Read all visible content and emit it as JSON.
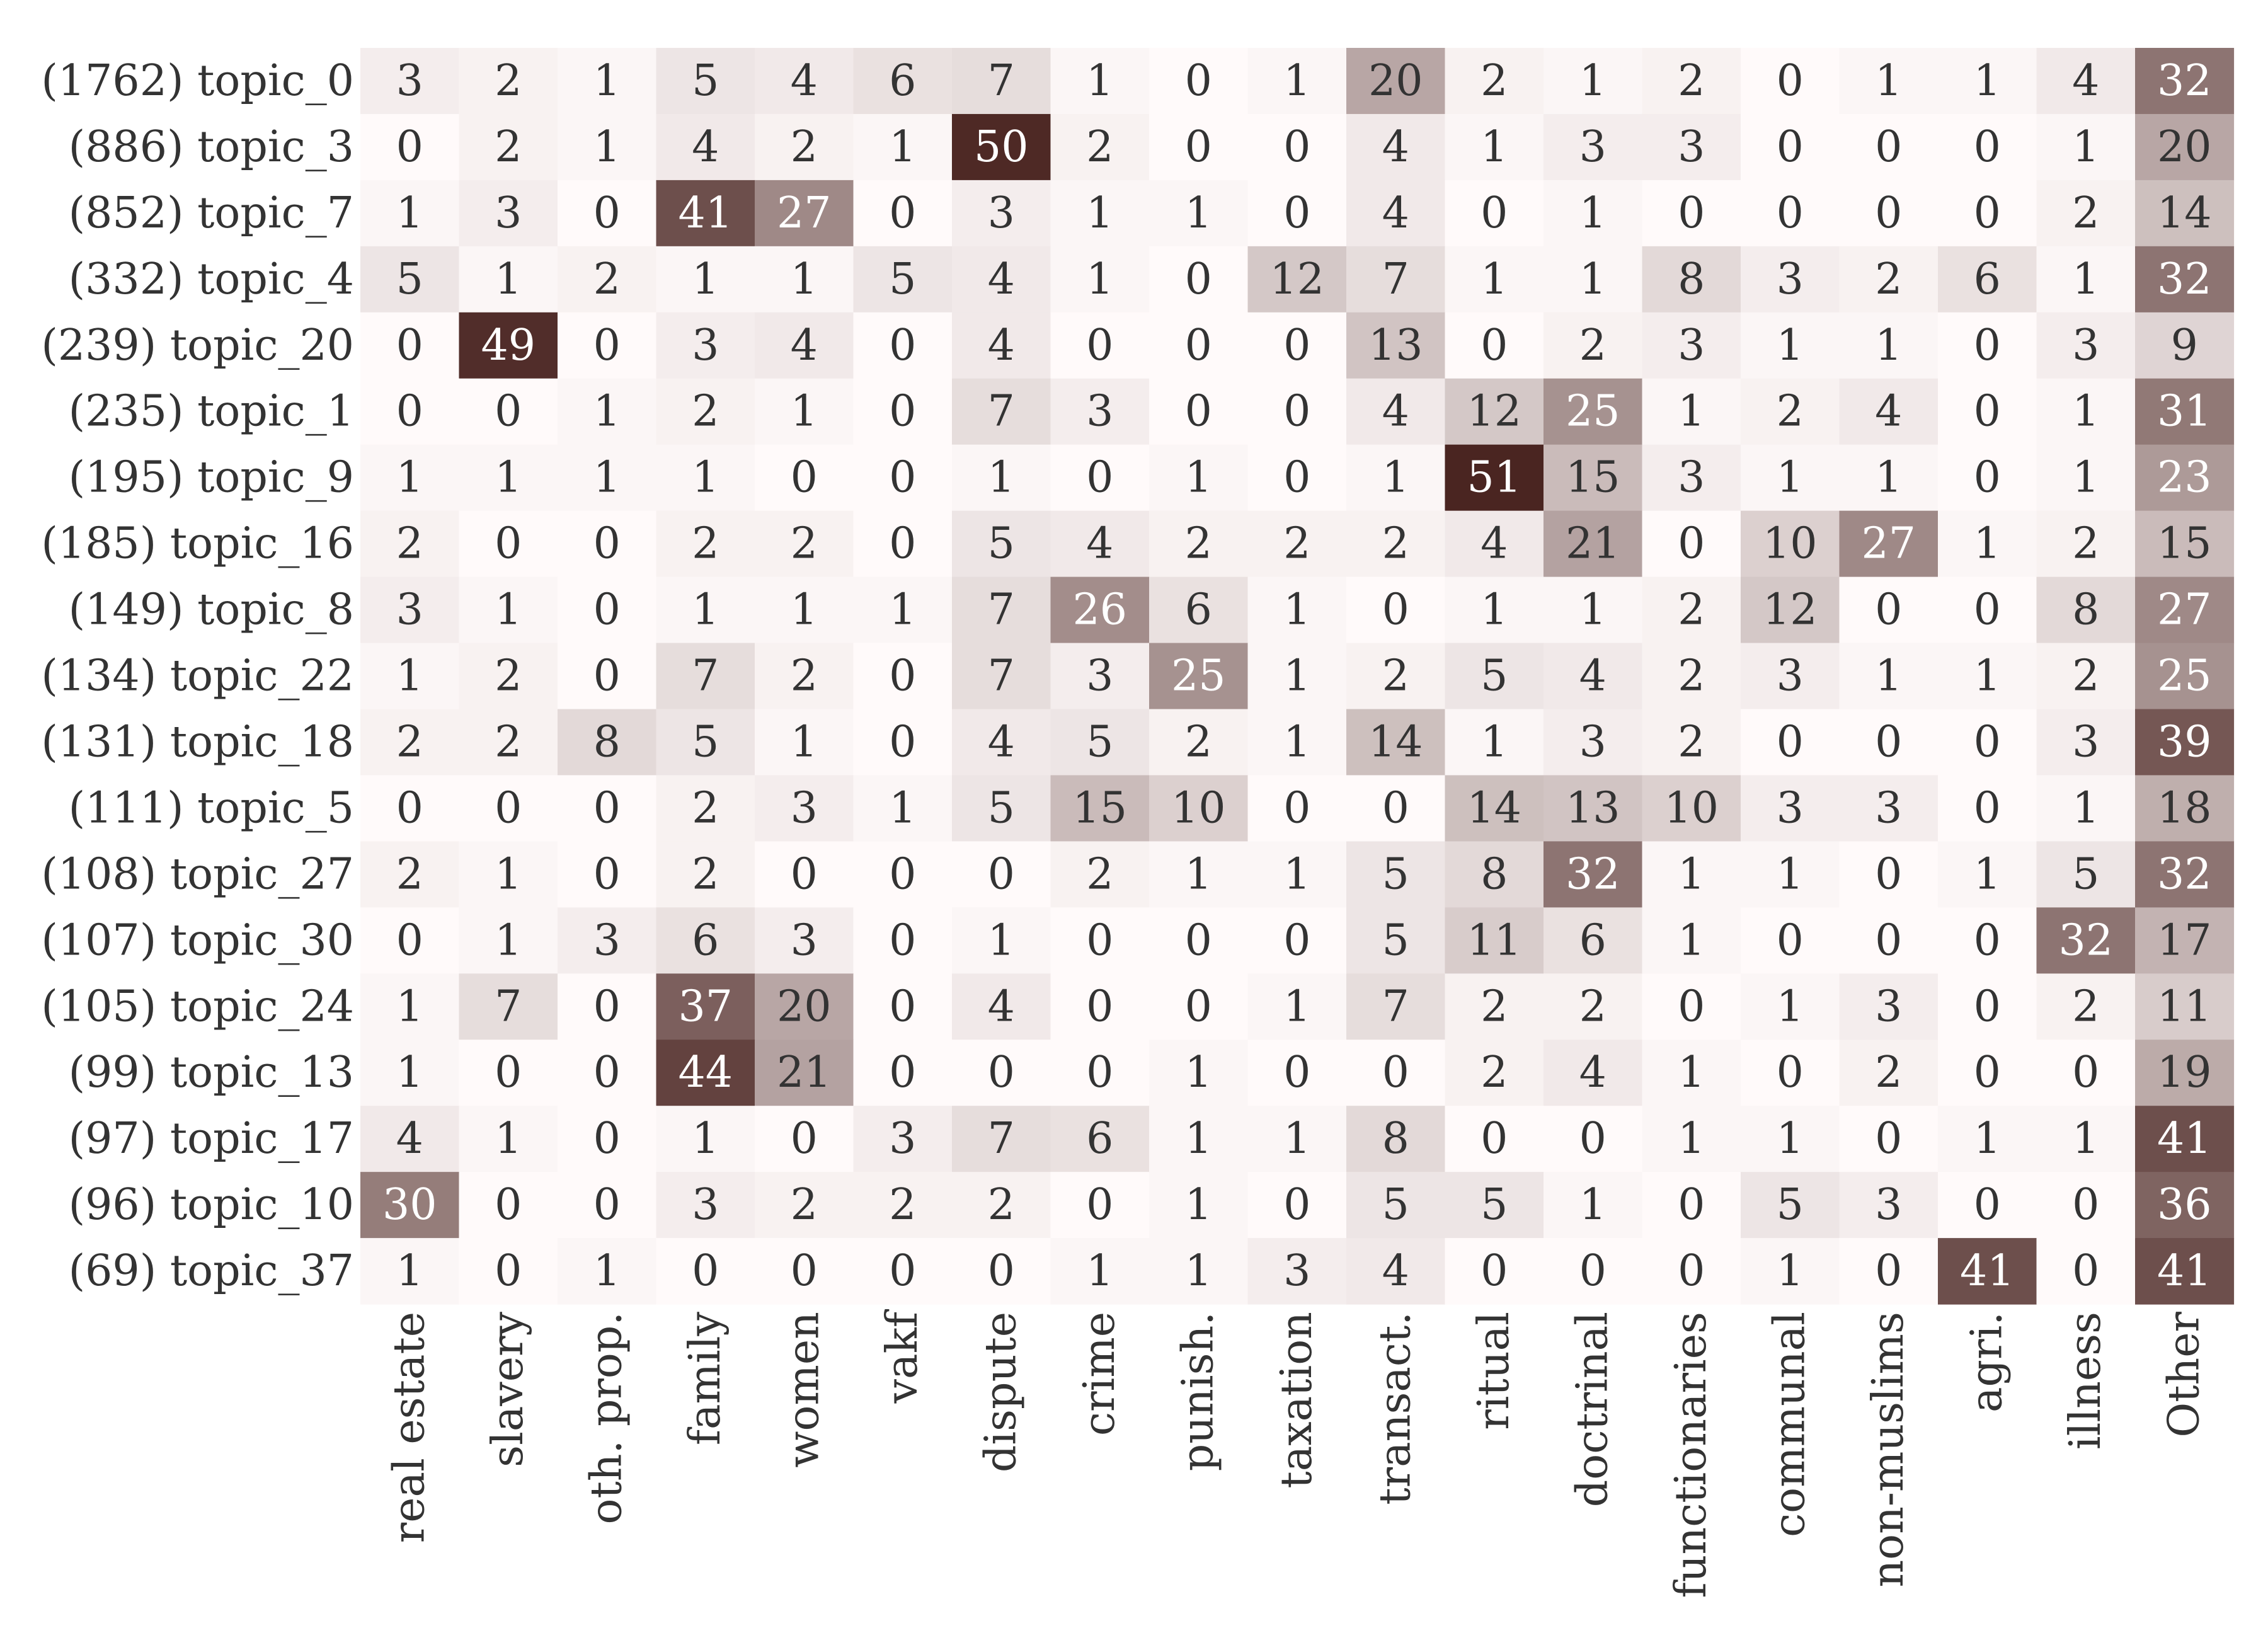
{
  "chart_data": {
    "type": "heatmap",
    "title": "",
    "xlabel": "",
    "ylabel": "",
    "columns": [
      "real estate",
      "slavery",
      "oth. prop.",
      "family",
      "women",
      "vakf",
      "dispute",
      "crime",
      "punish.",
      "taxation",
      "transact.",
      "ritual",
      "doctrinal",
      "functionaries",
      "communal",
      "non-muslims",
      "agri.",
      "illness",
      "Other"
    ],
    "rows": [
      "(1762) topic_0",
      "(886) topic_3",
      "(852) topic_7",
      "(332) topic_4",
      "(239) topic_20",
      "(235) topic_1",
      "(195) topic_9",
      "(185) topic_16",
      "(149) topic_8",
      "(134) topic_22",
      "(131) topic_18",
      "(111) topic_5",
      "(108) topic_27",
      "(107) topic_30",
      "(105) topic_24",
      "(99) topic_13",
      "(97) topic_17",
      "(96) topic_10",
      "(69) topic_37"
    ],
    "values": [
      [
        3,
        2,
        1,
        5,
        4,
        6,
        7,
        1,
        0,
        1,
        20,
        2,
        1,
        2,
        0,
        1,
        1,
        4,
        32
      ],
      [
        0,
        2,
        1,
        4,
        2,
        1,
        50,
        2,
        0,
        0,
        4,
        1,
        3,
        3,
        0,
        0,
        0,
        1,
        20
      ],
      [
        1,
        3,
        0,
        41,
        27,
        0,
        3,
        1,
        1,
        0,
        4,
        0,
        1,
        0,
        0,
        0,
        0,
        2,
        14
      ],
      [
        5,
        1,
        2,
        1,
        1,
        5,
        4,
        1,
        0,
        12,
        7,
        1,
        1,
        8,
        3,
        2,
        6,
        1,
        32
      ],
      [
        0,
        49,
        0,
        3,
        4,
        0,
        4,
        0,
        0,
        0,
        13,
        0,
        2,
        3,
        1,
        1,
        0,
        3,
        9
      ],
      [
        0,
        0,
        1,
        2,
        1,
        0,
        7,
        3,
        0,
        0,
        4,
        12,
        25,
        1,
        2,
        4,
        0,
        1,
        31
      ],
      [
        1,
        1,
        1,
        1,
        0,
        0,
        1,
        0,
        1,
        0,
        1,
        51,
        15,
        3,
        1,
        1,
        0,
        1,
        23
      ],
      [
        2,
        0,
        0,
        2,
        2,
        0,
        5,
        4,
        2,
        2,
        2,
        4,
        21,
        0,
        10,
        27,
        1,
        2,
        15
      ],
      [
        3,
        1,
        0,
        1,
        1,
        1,
        7,
        26,
        6,
        1,
        0,
        1,
        1,
        2,
        12,
        0,
        0,
        8,
        27
      ],
      [
        1,
        2,
        0,
        7,
        2,
        0,
        7,
        3,
        25,
        1,
        2,
        5,
        4,
        2,
        3,
        1,
        1,
        2,
        25
      ],
      [
        2,
        2,
        8,
        5,
        1,
        0,
        4,
        5,
        2,
        1,
        14,
        1,
        3,
        2,
        0,
        0,
        0,
        3,
        39
      ],
      [
        0,
        0,
        0,
        2,
        3,
        1,
        5,
        15,
        10,
        0,
        0,
        14,
        13,
        10,
        3,
        3,
        0,
        1,
        18
      ],
      [
        2,
        1,
        0,
        2,
        0,
        0,
        0,
        2,
        1,
        1,
        5,
        8,
        32,
        1,
        1,
        0,
        1,
        5,
        32
      ],
      [
        0,
        1,
        3,
        6,
        3,
        0,
        1,
        0,
        0,
        0,
        5,
        11,
        6,
        1,
        0,
        0,
        0,
        32,
        17
      ],
      [
        1,
        7,
        0,
        37,
        20,
        0,
        4,
        0,
        0,
        1,
        7,
        2,
        2,
        0,
        1,
        3,
        0,
        2,
        11
      ],
      [
        1,
        0,
        0,
        44,
        21,
        0,
        0,
        0,
        1,
        0,
        0,
        2,
        4,
        1,
        0,
        2,
        0,
        0,
        19
      ],
      [
        4,
        1,
        0,
        1,
        0,
        3,
        7,
        6,
        1,
        1,
        8,
        0,
        0,
        1,
        1,
        0,
        1,
        1,
        41
      ],
      [
        30,
        0,
        0,
        3,
        2,
        2,
        2,
        0,
        1,
        0,
        5,
        5,
        1,
        0,
        5,
        3,
        0,
        0,
        36
      ],
      [
        1,
        0,
        1,
        0,
        0,
        0,
        0,
        1,
        1,
        3,
        4,
        0,
        0,
        0,
        1,
        0,
        41,
        0,
        41
      ]
    ],
    "vmin": 0,
    "vmax": 51,
    "colorbar": false,
    "colors": {
      "low": "#fffafa",
      "high": "#4a2521",
      "text_dark": "#333333",
      "text_light": "#ffffff"
    }
  }
}
